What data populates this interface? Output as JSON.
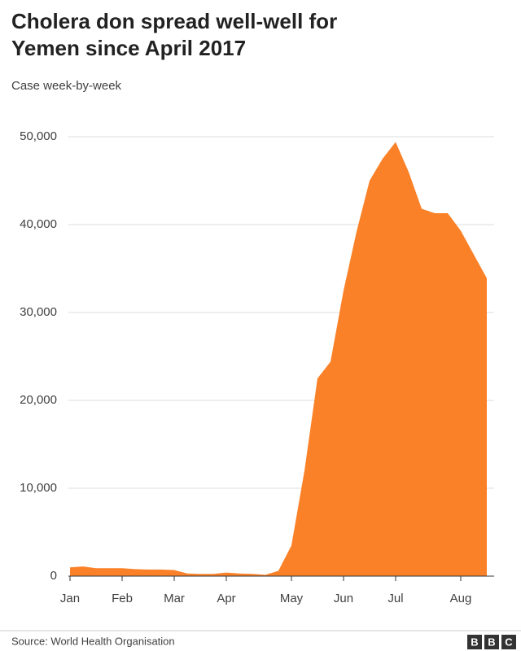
{
  "chart_data": {
    "type": "area",
    "title": [
      "Cholera don spread well-well for",
      "Yemen since April 2017"
    ],
    "subtitle": "Case week-by-week",
    "categories": [
      "Jan",
      null,
      null,
      null,
      "Feb",
      null,
      null,
      null,
      "Mar",
      null,
      null,
      null,
      "Apr",
      null,
      null,
      null,
      null,
      "May",
      null,
      null,
      null,
      "Jun",
      null,
      null,
      null,
      "Jul",
      null,
      null,
      null,
      null,
      "Aug",
      null,
      null
    ],
    "values": [
      1000,
      1100,
      900,
      900,
      900,
      800,
      750,
      750,
      700,
      300,
      250,
      250,
      400,
      300,
      250,
      150,
      600,
      3500,
      12000,
      22500,
      24400,
      32500,
      39200,
      45000,
      47500,
      49400,
      46000,
      41800,
      41300,
      41300,
      39300,
      36600,
      33900
    ],
    "color": "#fa8128",
    "ylim": [
      0,
      50000
    ],
    "yticks": [
      0,
      {
        "value": 10000,
        "label": "10,000"
      },
      {
        "value": 20000,
        "label": "20,000"
      },
      {
        "value": 30000,
        "label": "30,000"
      },
      {
        "value": 40000,
        "label": "40,000"
      },
      {
        "value": 50000,
        "label": "50,000"
      }
    ],
    "grid": true,
    "source": "Source: World Health Organisation",
    "logo": [
      "B",
      "B",
      "C"
    ]
  }
}
